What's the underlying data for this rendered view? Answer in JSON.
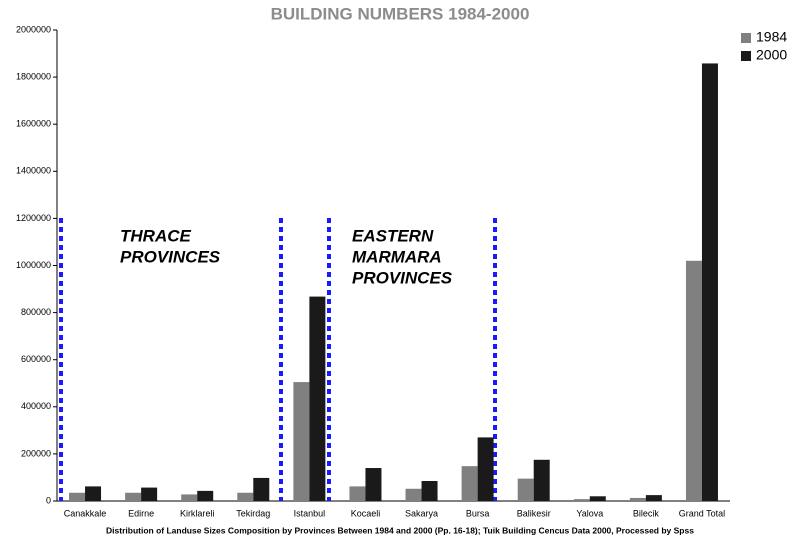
{
  "chart_data": {
    "type": "bar",
    "title": "BUILDING NUMBERS 1984-2000",
    "footnote": "Distribution of Landuse Sizes Composition by Provinces Between 1984 and 2000 (Pp. 16-18); Tuik Building Cencus Data 2000, Processed by Spss",
    "categories": [
      "Canakkale",
      "Edirne",
      "Kirklareli",
      "Tekirdag",
      "Istanbul",
      "Kocaeli",
      "Sakarya",
      "Bursa",
      "Balikesir",
      "Yalova",
      "Bilecik",
      "Grand Total"
    ],
    "series": [
      {
        "name": "1984",
        "color": "#808080",
        "values": [
          35000,
          35000,
          28000,
          35000,
          505000,
          62000,
          52000,
          148000,
          95000,
          8000,
          13000,
          1020000
        ]
      },
      {
        "name": "2000",
        "color": "#1a1a1a",
        "values": [
          62000,
          57000,
          43000,
          98000,
          868000,
          140000,
          85000,
          270000,
          175000,
          20000,
          25000,
          1858000
        ]
      }
    ],
    "ylim": [
      0,
      2000000
    ],
    "yticks": [
      0,
      200000,
      400000,
      600000,
      800000,
      1000000,
      1200000,
      1400000,
      1600000,
      1800000,
      2000000
    ],
    "annotations": [
      {
        "lines": [
          "THRACE",
          "PROVINCES"
        ]
      },
      {
        "lines": [
          "EASTERN",
          "MARMARA",
          "PROVINCES"
        ]
      }
    ],
    "legend": "top-right"
  }
}
